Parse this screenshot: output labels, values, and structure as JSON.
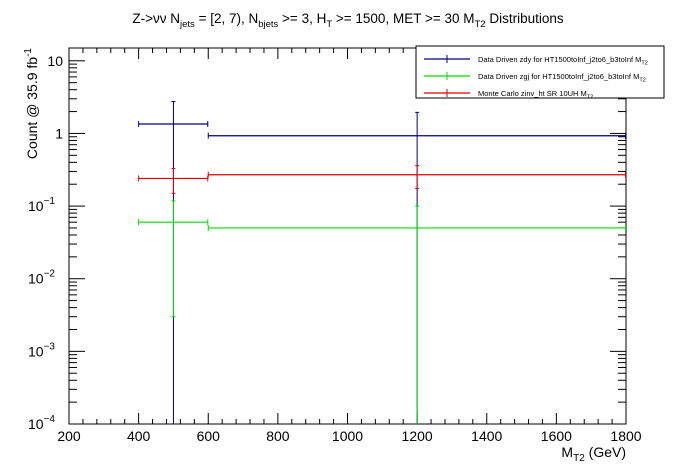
{
  "chart_data": {
    "type": "line",
    "title": "Z->νν N_jets = [2, 7), N_bjets >= 3, H_T >= 1500, MET >= 30 M_T2 Distributions",
    "title_parts": {
      "prefix": "Z->νν N",
      "sub1": "jets",
      "mid1": " = [2, 7), N",
      "sub2": "bjets",
      "mid2": " >= 3, H",
      "sub3": "T",
      "mid3": " >= 1500, MET >= 30 M",
      "sub4": "T2",
      "suffix": " Distributions"
    },
    "xlabel": "M_T2 (GeV)",
    "xlabel_parts": {
      "base": "M",
      "sub": "T2",
      "unit": " (GeV)"
    },
    "ylabel": "Count @ 35.9 fb^-1",
    "ylabel_parts": {
      "base": "Count @ 35.9 fb",
      "sup": "-1"
    },
    "xlim": [
      200,
      1800
    ],
    "ylim": [
      0.0001,
      15
    ],
    "yscale": "log",
    "x_ticks": [
      200,
      400,
      600,
      800,
      1000,
      1200,
      1400,
      1600,
      1800
    ],
    "x_tick_labels": [
      "200",
      "400",
      "600",
      "800",
      "1000",
      "1200",
      "1400",
      "1600",
      "1800"
    ],
    "y_ticks": [
      {
        "value": 10,
        "base": "10",
        "exp": ""
      },
      {
        "value": 1,
        "base": "1",
        "exp": ""
      },
      {
        "value": 0.1,
        "base": "10",
        "exp": "−1"
      },
      {
        "value": 0.01,
        "base": "10",
        "exp": "−2"
      },
      {
        "value": 0.001,
        "base": "10",
        "exp": "−3"
      },
      {
        "value": 0.0001,
        "base": "10",
        "exp": "−4"
      }
    ],
    "grid": false,
    "legend_position": "top-right",
    "series": [
      {
        "name": "Data Driven zdy for HT1500toInf_j2to6_b3toInf M_T2",
        "legend_parts": {
          "text": "Data Driven zdy for HT1500toInf_j2to6_b3toInf M",
          "sub": "T2"
        },
        "color": "#000080",
        "bins": [
          {
            "x_low": 400,
            "x_high": 600,
            "x_center": 500,
            "y": 1.35,
            "y_err_low": 0.0001,
            "y_err_high": 2.75
          },
          {
            "x_low": 600,
            "x_high": 1800,
            "x_center": 1200,
            "y": 0.93,
            "y_err_low": 0.0001,
            "y_err_high": 1.95
          }
        ]
      },
      {
        "name": "Data Driven zgj for HT1500toInf_j2to6_b3toInf M_T2",
        "legend_parts": {
          "text": "Data Driven zgj for HT1500toInf_j2to6_b3toInf M",
          "sub": "T2"
        },
        "color": "#00dd00",
        "bins": [
          {
            "x_low": 400,
            "x_high": 600,
            "x_center": 500,
            "y": 0.06,
            "y_err_low": 0.003,
            "y_err_high": 0.118
          },
          {
            "x_low": 600,
            "x_high": 1800,
            "x_center": 1200,
            "y": 0.05,
            "y_err_low": 0.0001,
            "y_err_high": 0.1
          }
        ]
      },
      {
        "name": "Monte Carlo zinv_ht SR 10UH M_T2",
        "legend_parts": {
          "text": "Monte Carlo zinv_ht SR 10UH M",
          "sub": "T2"
        },
        "color": "#dd0000",
        "bins": [
          {
            "x_low": 400,
            "x_high": 600,
            "x_center": 500,
            "y": 0.24,
            "y_err_low": 0.15,
            "y_err_high": 0.33
          },
          {
            "x_low": 600,
            "x_high": 1800,
            "x_center": 1200,
            "y": 0.27,
            "y_err_low": 0.175,
            "y_err_high": 0.36
          }
        ]
      }
    ]
  }
}
